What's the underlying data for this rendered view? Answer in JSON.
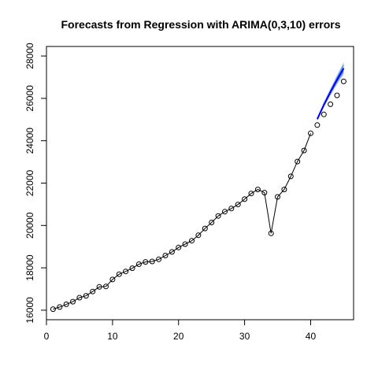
{
  "chart_data": {
    "type": "line",
    "title": "Forecasts from Regression with ARIMA(0,3,10) errors",
    "xlabel": "",
    "ylabel": "",
    "xlim": [
      0,
      46.5
    ],
    "ylim": [
      15550,
      28450
    ],
    "x_ticks": [
      0,
      10,
      20,
      30,
      40
    ],
    "y_ticks": [
      16000,
      18000,
      20000,
      22000,
      24000,
      26000,
      28000
    ],
    "grid": false,
    "legend": "none",
    "series": [
      {
        "role": "observed",
        "style": "line-with-open-circles",
        "color": "#000000",
        "x": [
          1,
          2,
          3,
          4,
          5,
          6,
          7,
          8,
          9,
          10,
          11,
          12,
          13,
          14,
          15,
          16,
          17,
          18,
          19,
          20,
          21,
          22,
          23,
          24,
          25,
          26,
          27,
          28,
          29,
          30,
          31,
          32,
          33,
          34,
          35,
          36,
          37,
          38,
          39,
          40
        ],
        "values": [
          16050,
          16150,
          16280,
          16400,
          16590,
          16680,
          16880,
          17100,
          17120,
          17450,
          17700,
          17830,
          17980,
          18170,
          18280,
          18300,
          18400,
          18580,
          18750,
          18960,
          19120,
          19280,
          19540,
          19860,
          20140,
          20450,
          20650,
          20800,
          20990,
          21240,
          21510,
          21700,
          21550,
          19630,
          21350,
          21700,
          22320,
          23020,
          23540,
          24350
        ]
      },
      {
        "role": "actual-holdout",
        "style": "open-circles",
        "color": "#000000",
        "x": [
          41,
          42,
          43,
          44,
          45
        ],
        "values": [
          24740,
          25240,
          25720,
          26140,
          26800
        ]
      },
      {
        "role": "forecast",
        "style": "line",
        "color": "#0000ff",
        "x": [
          41,
          42,
          43,
          44,
          45
        ],
        "values": [
          25020,
          25700,
          26300,
          26880,
          27420
        ]
      }
    ],
    "intervals": [
      {
        "level": 95,
        "color": "#d6d6dc",
        "x": [
          41,
          42,
          43,
          44,
          45
        ],
        "lower": [
          24930,
          25560,
          26120,
          26640,
          27100
        ],
        "upper": [
          25110,
          25840,
          26480,
          27120,
          27740
        ]
      },
      {
        "level": 80,
        "color": "#599ad3",
        "x": [
          41,
          42,
          43,
          44,
          45
        ],
        "lower": [
          24960,
          25610,
          26180,
          26720,
          27210
        ],
        "upper": [
          25080,
          25790,
          26420,
          27040,
          27630
        ]
      }
    ]
  }
}
